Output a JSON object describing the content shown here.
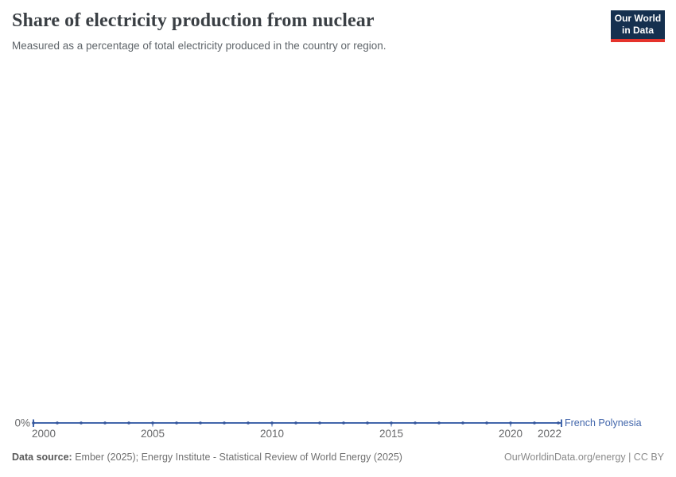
{
  "header": {
    "title": "Share of electricity production from nuclear",
    "subtitle": "Measured as a percentage of total electricity produced in the country or region.",
    "logo": {
      "line1": "Our World",
      "line2": "in Data",
      "bg_color": "#15304f",
      "bar_color": "#e5332c"
    }
  },
  "chart_data": {
    "type": "line",
    "title": "Share of electricity production from nuclear",
    "subtitle": "Measured as a percentage of total electricity produced in the country or region.",
    "x_range": [
      2000,
      2022
    ],
    "x_ticks": [
      2000,
      2005,
      2010,
      2015,
      2020,
      2022
    ],
    "y_axis": {
      "tick_label": "0%",
      "min": 0,
      "max": 0,
      "unit": "%"
    },
    "grid": false,
    "legend_position": "end-of-line",
    "series": [
      {
        "name": "French Polynesia",
        "color": "#4266ab",
        "x": [
          2000,
          2001,
          2002,
          2003,
          2004,
          2005,
          2006,
          2007,
          2008,
          2009,
          2010,
          2011,
          2012,
          2013,
          2014,
          2015,
          2016,
          2017,
          2018,
          2019,
          2020,
          2021,
          2022
        ],
        "values": [
          0,
          0,
          0,
          0,
          0,
          0,
          0,
          0,
          0,
          0,
          0,
          0,
          0,
          0,
          0,
          0,
          0,
          0,
          0,
          0,
          0,
          0,
          0
        ]
      }
    ],
    "colors": {
      "line": "#4266ab",
      "point": "#35569b",
      "axis_text": "#68696b"
    }
  },
  "footer": {
    "source_label": "Data source:",
    "source_text": " Ember (2025); Energy Institute - Statistical Review of World Energy (2025)",
    "right_text": "OurWorldinData.org/energy | CC BY"
  }
}
